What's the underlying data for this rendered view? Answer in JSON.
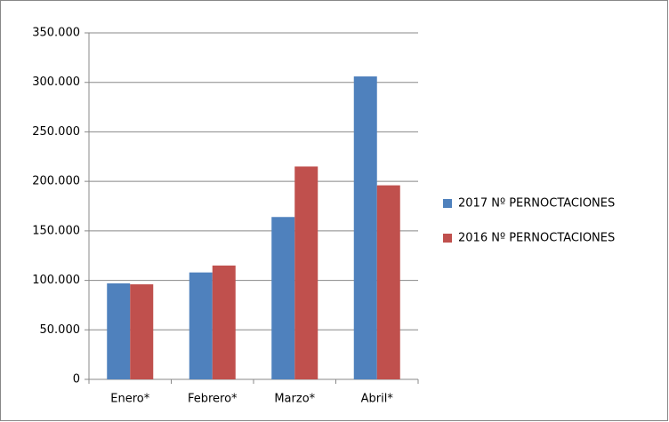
{
  "chart_data": {
    "type": "bar",
    "categories": [
      "Enero*",
      "Febrero*",
      "Marzo*",
      "Abril*"
    ],
    "series": [
      {
        "name": "2017 Nº PERNOCTACIONES",
        "color": "#4f81bd",
        "values": [
          97000,
          108000,
          164000,
          306000
        ]
      },
      {
        "name": "2016 Nº PERNOCTACIONES",
        "color": "#c0504d",
        "values": [
          96000,
          115000,
          215000,
          196000
        ]
      }
    ],
    "ylim": [
      0,
      350000
    ],
    "yticks": [
      0,
      {
        "value": 50000,
        "label": "50.000"
      },
      {
        "value": 100000,
        "label": "100.000"
      },
      {
        "value": 150000,
        "label": "150.000"
      },
      {
        "value": 200000,
        "label": "200.000"
      },
      {
        "value": 250000,
        "label": "250.000"
      },
      {
        "value": 300000,
        "label": "300.000"
      },
      {
        "value": 350000,
        "label": "350.000"
      }
    ],
    "grid": true,
    "legend": "right"
  }
}
